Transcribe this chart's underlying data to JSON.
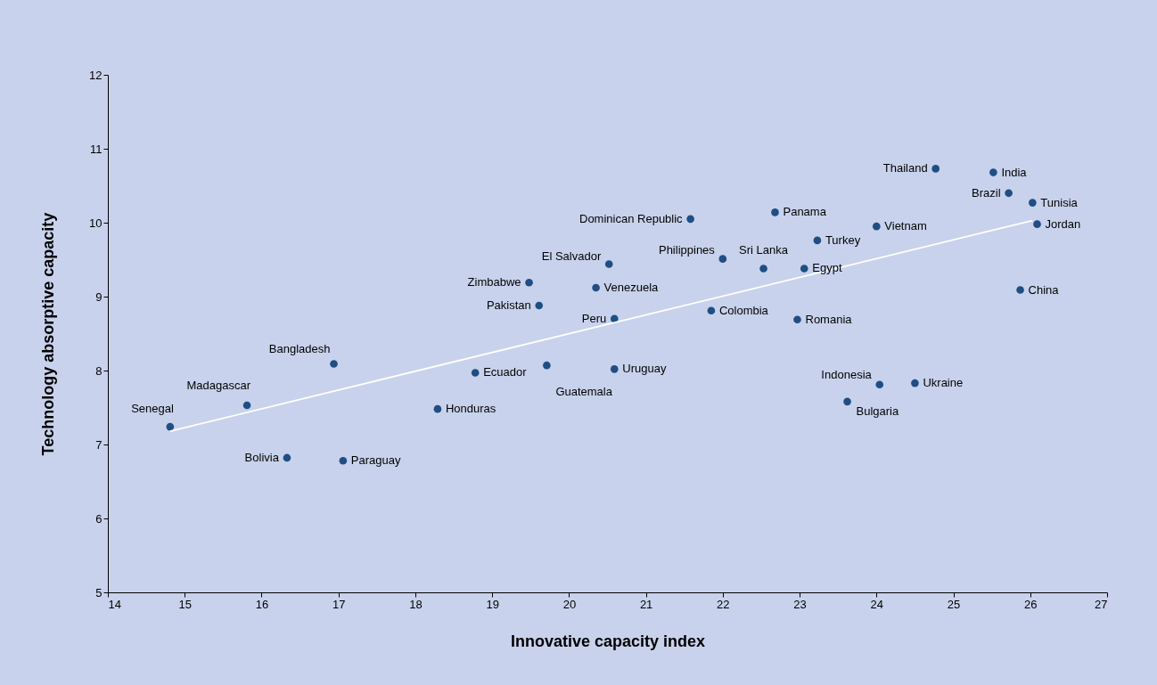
{
  "chart_data": {
    "type": "scatter",
    "xlabel": "Innovative capacity index",
    "ylabel": "Technology absorptive capacity",
    "xlim": [
      14,
      27
    ],
    "xticks": [
      14,
      15,
      16,
      17,
      18,
      19,
      20,
      21,
      22,
      23,
      24,
      25,
      26,
      27
    ],
    "ylim": [
      5,
      12
    ],
    "yticks": [
      5,
      6,
      7,
      8,
      9,
      10,
      11,
      12
    ],
    "grid": false,
    "series": [
      {
        "marker": "circle",
        "color": "#1f4e84",
        "x": [
          14.81,
          15.81,
          16.33,
          16.94,
          17.06,
          18.29,
          18.78,
          19.48,
          19.61,
          19.71,
          20.35,
          20.52,
          20.59,
          20.59,
          21.58,
          21.85,
          22.0,
          22.68,
          22.53,
          22.97,
          23.06,
          23.23,
          23.62,
          24.0,
          24.04,
          24.5,
          24.77,
          25.52,
          25.72,
          26.03,
          26.09,
          25.87
        ],
        "values": [
          7.24,
          7.53,
          6.82,
          8.09,
          6.78,
          7.48,
          7.97,
          9.19,
          8.88,
          8.07,
          9.12,
          9.44,
          8.7,
          8.02,
          10.05,
          8.81,
          9.51,
          10.14,
          9.38,
          8.69,
          9.38,
          9.76,
          7.58,
          9.95,
          7.81,
          7.83,
          10.73,
          10.68,
          10.4,
          10.27,
          9.98,
          9.09
        ]
      },
      {
        "type": "line",
        "color": "#ffffff",
        "x": [
          14.81,
          26.03
        ],
        "values": [
          7.18,
          10.03
        ]
      }
    ],
    "annotations": [
      {
        "text": "Senegal",
        "x": 14.81,
        "y": 7.24
      },
      {
        "text": "Madagascar",
        "x": 15.81,
        "y": 7.53
      },
      {
        "text": "Bolivia",
        "x": 16.33,
        "y": 6.82
      },
      {
        "text": "Bangladesh",
        "x": 16.94,
        "y": 8.09
      },
      {
        "text": "Paraguay",
        "x": 17.06,
        "y": 6.78
      },
      {
        "text": "Honduras",
        "x": 18.29,
        "y": 7.48
      },
      {
        "text": "Ecuador",
        "x": 18.78,
        "y": 7.97
      },
      {
        "text": "Zimbabwe",
        "x": 19.48,
        "y": 9.19
      },
      {
        "text": "Pakistan",
        "x": 19.61,
        "y": 8.88
      },
      {
        "text": "Guatemala",
        "x": 19.71,
        "y": 8.07
      },
      {
        "text": "Venezuela",
        "x": 20.35,
        "y": 9.12
      },
      {
        "text": "El Salvador",
        "x": 20.52,
        "y": 9.44
      },
      {
        "text": "Peru",
        "x": 20.59,
        "y": 8.7
      },
      {
        "text": "Uruguay",
        "x": 20.59,
        "y": 8.02
      },
      {
        "text": "Dominican Republic",
        "x": 21.58,
        "y": 10.05
      },
      {
        "text": "Colombia",
        "x": 21.85,
        "y": 8.81
      },
      {
        "text": "Philippines",
        "x": 22.0,
        "y": 9.51
      },
      {
        "text": "Panama",
        "x": 22.68,
        "y": 10.14
      },
      {
        "text": "Sri Lanka",
        "x": 22.53,
        "y": 9.38
      },
      {
        "text": "Romania",
        "x": 22.97,
        "y": 8.69
      },
      {
        "text": "Egypt",
        "x": 23.06,
        "y": 9.38
      },
      {
        "text": "Turkey",
        "x": 23.23,
        "y": 9.76
      },
      {
        "text": "Bulgaria",
        "x": 23.62,
        "y": 7.58
      },
      {
        "text": "Vietnam",
        "x": 24.0,
        "y": 9.95
      },
      {
        "text": "Indonesia",
        "x": 24.04,
        "y": 7.81
      },
      {
        "text": "Ukraine",
        "x": 24.5,
        "y": 7.83
      },
      {
        "text": "Thailand",
        "x": 24.77,
        "y": 10.73
      },
      {
        "text": "India",
        "x": 25.52,
        "y": 10.68
      },
      {
        "text": "Brazil",
        "x": 25.72,
        "y": 10.4
      },
      {
        "text": "Tunisia",
        "x": 26.03,
        "y": 10.27
      },
      {
        "text": "Jordan",
        "x": 26.09,
        "y": 9.98
      },
      {
        "text": "China",
        "x": 25.87,
        "y": 9.09
      }
    ]
  }
}
